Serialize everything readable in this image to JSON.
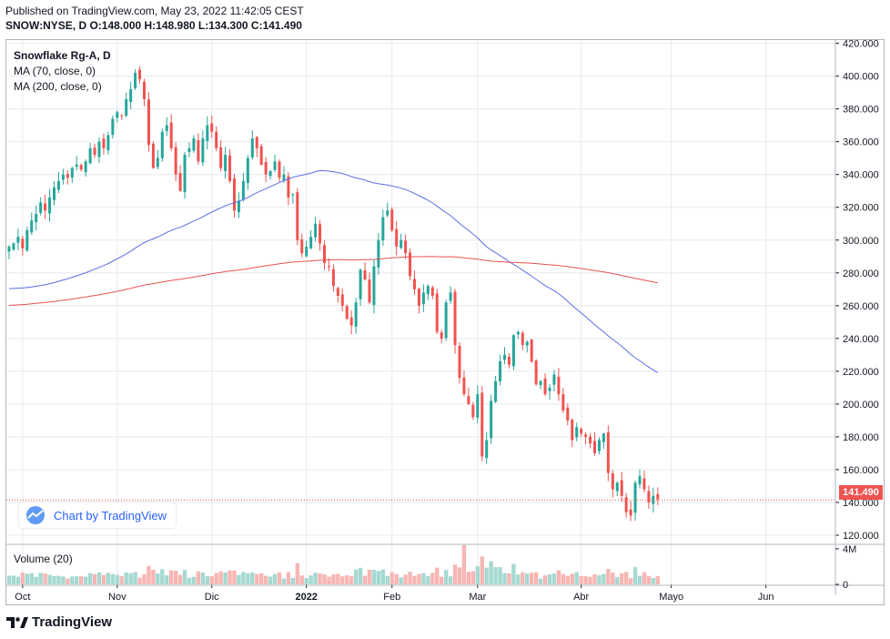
{
  "header": {
    "published": "Published on TradingView.com, May 23, 2022 11:42:05 CEST",
    "ohlc": "SNOW:NYSE, D O:148.000 H:148.980 L:134.300 C:141.490"
  },
  "legend": {
    "title": "Snowflake Rg-A, D",
    "ma70": "MA (70, close, 0)",
    "ma200": "MA (200, close, 0)",
    "volume": "Volume (20)"
  },
  "badge": {
    "text": "Chart by TradingView"
  },
  "footer": {
    "brand": "TradingView"
  },
  "colors": {
    "up": "#26a69a",
    "down": "#ef5350",
    "ma70": "#5b6ee1",
    "ma200": "#e8534f",
    "vol_up": "#a5d9d2",
    "vol_down": "#f7b6b4",
    "price_line": "#ef5350",
    "grid": "#e6e9ef"
  },
  "chart_data": {
    "type": "candlestick",
    "symbol": "SNOW:NYSE",
    "last_price": 141.49,
    "last_price_label": "141.490",
    "ylim": [
      115,
      422
    ],
    "y_ticks": [
      "420.000",
      "400.000",
      "380.000",
      "360.000",
      "340.000",
      "320.000",
      "300.000",
      "280.000",
      "260.000",
      "240.000",
      "220.000",
      "200.000",
      "180.000",
      "160.000",
      "140.000",
      "120.000"
    ],
    "y_tick_values": [
      420,
      400,
      380,
      360,
      340,
      320,
      300,
      280,
      260,
      240,
      220,
      200,
      180,
      160,
      140,
      120
    ],
    "x_ticks": [
      {
        "label": "Oct",
        "index": 3
      },
      {
        "label": "Nov",
        "index": 24
      },
      {
        "label": "Dic",
        "index": 45
      },
      {
        "label": "2022",
        "index": 66
      },
      {
        "label": "Feb",
        "index": 85
      },
      {
        "label": "Mar",
        "index": 104
      },
      {
        "label": "Abr",
        "index": 127
      },
      {
        "label": "Mayo",
        "index": 147
      },
      {
        "label": "Jun",
        "index": 168
      }
    ],
    "volume_ticks": [
      "4M",
      "0"
    ],
    "volume_tick_values": [
      4,
      0
    ],
    "volume_max": 4.5,
    "close": [
      296,
      298,
      302,
      295,
      306,
      312,
      316,
      323,
      318,
      326,
      332,
      336,
      340,
      338,
      344,
      346,
      343,
      348,
      356,
      352,
      360,
      356,
      364,
      374,
      378,
      376,
      386,
      392,
      402,
      398,
      386,
      358,
      344,
      350,
      366,
      370,
      356,
      340,
      330,
      352,
      356,
      362,
      348,
      362,
      370,
      366,
      356,
      344,
      352,
      336,
      318,
      324,
      336,
      350,
      362,
      356,
      346,
      340,
      342,
      348,
      338,
      340,
      326,
      328,
      300,
      292,
      296,
      302,
      310,
      298,
      286,
      284,
      272,
      266,
      260,
      252,
      248,
      262,
      282,
      276,
      262,
      284,
      300,
      314,
      318,
      306,
      296,
      300,
      292,
      278,
      270,
      260,
      268,
      272,
      266,
      244,
      240,
      262,
      268,
      236,
      216,
      206,
      200,
      192,
      206,
      168,
      178,
      202,
      214,
      226,
      230,
      224,
      242,
      244,
      236,
      238,
      226,
      212,
      214,
      206,
      210,
      218,
      206,
      196,
      190,
      178,
      186,
      182,
      180,
      176,
      170,
      178,
      182,
      158,
      148,
      152,
      144,
      134,
      132,
      152,
      156,
      148,
      140,
      144,
      142
    ]
  }
}
